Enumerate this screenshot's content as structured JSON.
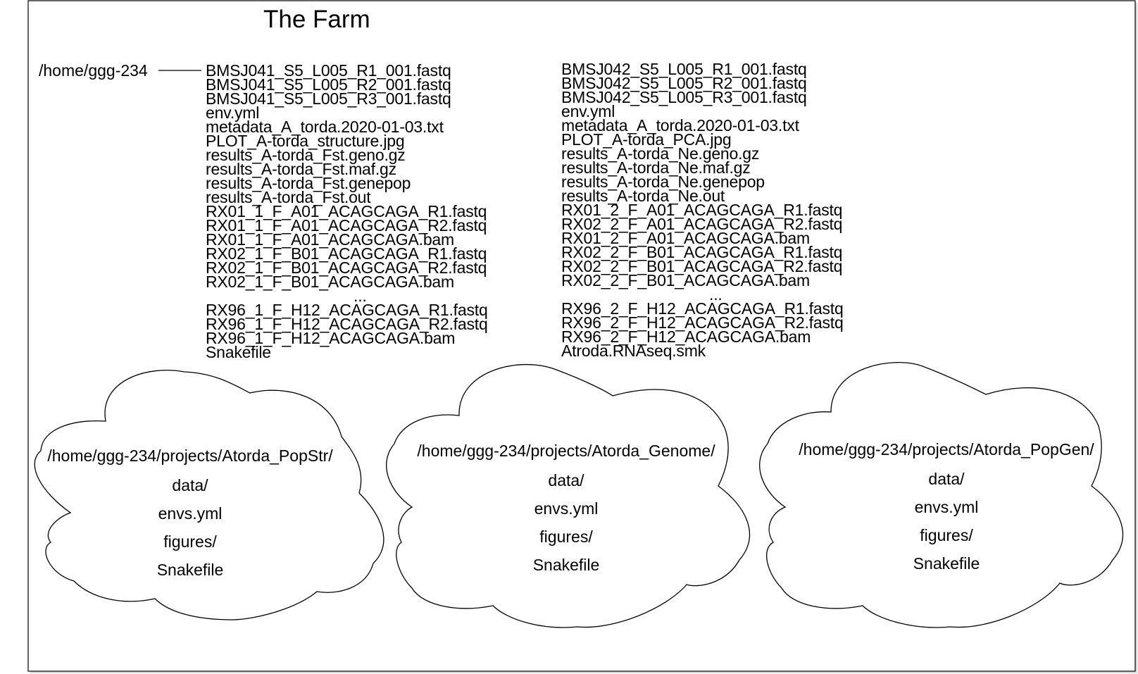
{
  "title": "The Farm",
  "home_dir": "/home/ggg-234",
  "left_files": [
    "BMSJ041_S5_L005_R1_001.fastq",
    "BMSJ041_S5_L005_R2_001.fastq",
    "BMSJ041_S5_L005_R3_001.fastq",
    "env.yml",
    "metadata_A_torda.2020-01-03.txt",
    "PLOT_A-torda_structure.jpg",
    "results_A-torda_Fst.geno.gz",
    "results_A-torda_Fst.maf.gz",
    "results_A-torda_Fst.genepop",
    "results_A-torda_Fst.out",
    "RX01_1_F_A01_ACAGCAGA_R1.fastq",
    "RX01_1_F_A01_ACAGCAGA_R2.fastq",
    "RX01_1_F_A01_ACAGCAGA.bam",
    "RX02_1_F_B01_ACAGCAGA_R1.fastq",
    "RX02_1_F_B01_ACAGCAGA_R2.fastq",
    "RX02_1_F_B01_ACAGCAGA.bam",
    "...",
    "RX96_1_F_H12_ACAGCAGA_R1.fastq",
    "RX96_1_F_H12_ACAGCAGA_R2.fastq",
    "RX96_1_F_H12_ACAGCAGA.bam",
    "Snakefile"
  ],
  "right_files": [
    "BMSJ042_S5_L005_R1_001.fastq",
    "BMSJ042_S5_L005_R2_001.fastq",
    "BMSJ042_S5_L005_R3_001.fastq",
    "env.yml",
    "metadata_A_torda.2020-01-03.txt",
    "PLOT_A-torda_PCA.jpg",
    "results_A-torda_Ne.geno.gz",
    "results_A-torda_Ne.maf.gz",
    "results_A-torda_Ne.genepop",
    "results_A-torda_Ne.out",
    "RX01_2_F_A01_ACAGCAGA_R1.fastq",
    "RX02_2_F_A01_ACAGCAGA_R2.fastq",
    "RX01_2_F_A01_ACAGCAGA.bam",
    "RX02_2_F_B01_ACAGCAGA_R1.fastq",
    "RX02_2_F_B01_ACAGCAGA_R2.fastq",
    "RX02_2_F_B01_ACAGCAGA.bam",
    "...",
    "RX96_2_F_H12_ACAGCAGA_R1.fastq",
    "RX96_2_F_H12_ACAGCAGA_R2.fastq",
    "RX96_2_F_H12_ACAGCAGA.bam",
    "Atroda.RNAseq.smk"
  ],
  "clouds": [
    {
      "path": "/home/ggg-234/projects/Atorda_PopStr/",
      "items": [
        "data/",
        "envs.yml",
        "figures/",
        "Snakefile"
      ]
    },
    {
      "path": "/home/ggg-234/projects/Atorda_Genome/",
      "items": [
        "data/",
        "envs.yml",
        "figures/",
        "Snakefile"
      ]
    },
    {
      "path": "/home/ggg-234/projects/Atorda_PopGen/",
      "items": [
        "data/",
        "envs.yml",
        "figures/",
        "Snakefile"
      ]
    }
  ]
}
